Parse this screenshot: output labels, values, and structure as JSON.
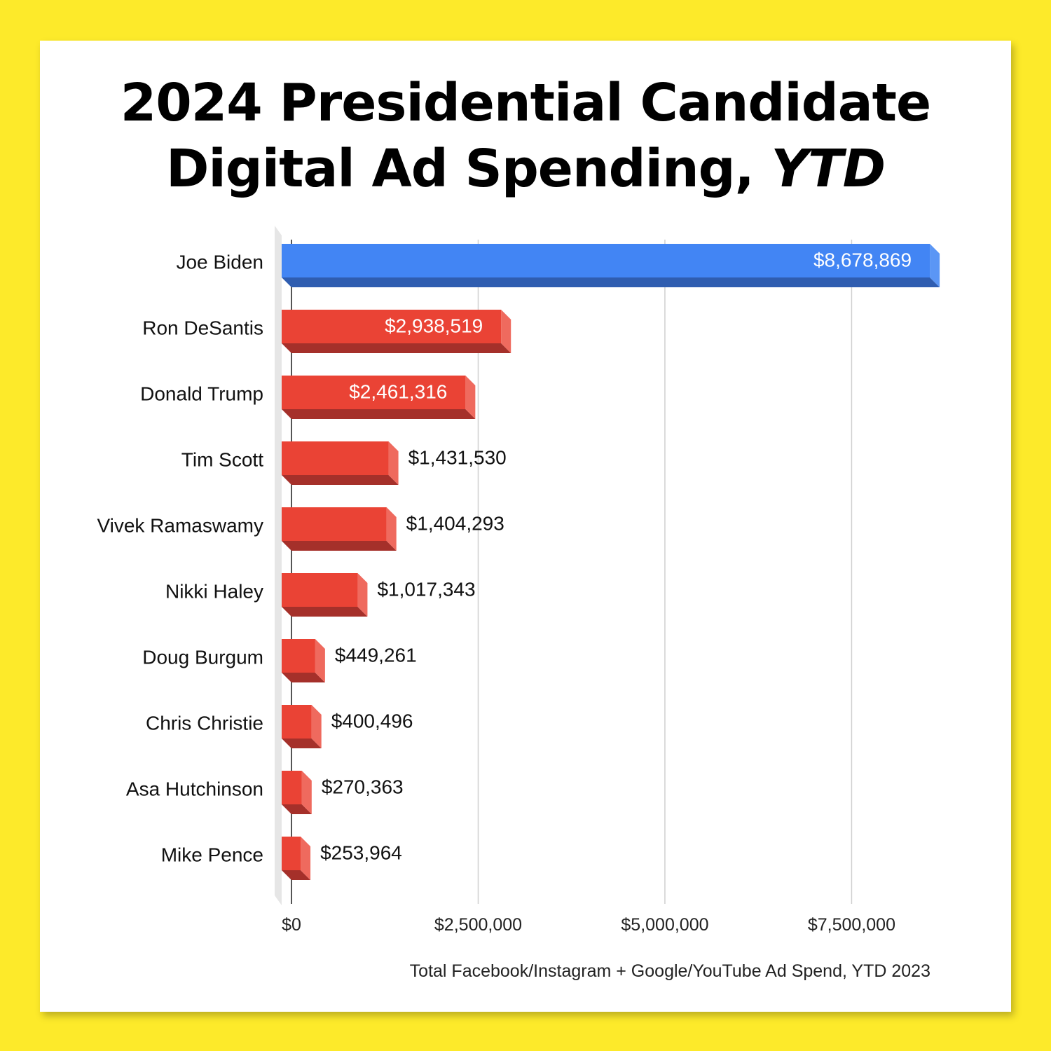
{
  "title": {
    "line1": "2024 Presidential Candidate",
    "line2_main": "Digital Ad Spending, ",
    "line2_emph": "YTD"
  },
  "caption": "Total Facebook/Instagram + Google/YouTube Ad Spend, YTD 2023",
  "colors": {
    "background": "#fdea2a",
    "democrat": "#4285f4",
    "republican": "#ea4335"
  },
  "chart_data": {
    "type": "bar",
    "orientation": "horizontal",
    "style": "3d",
    "title": "2024 Presidential Candidate Digital Ad Spending, YTD",
    "xlabel": "",
    "ylabel": "",
    "xlim": [
      0,
      8800000
    ],
    "grid": true,
    "legend": "none",
    "x_ticks": [
      0,
      2500000,
      5000000,
      7500000
    ],
    "x_tick_labels": [
      "$0",
      "$2,500,000",
      "$5,000,000",
      "$7,500,000"
    ],
    "categories": [
      "Joe Biden",
      "Ron DeSantis",
      "Donald Trump",
      "Tim Scott",
      "Vivek Ramaswamy",
      "Nikki Haley",
      "Doug Burgum",
      "Chris Christie",
      "Asa Hutchinson",
      "Mike Pence"
    ],
    "values": [
      8678869,
      2938519,
      2461316,
      1431530,
      1404293,
      1017343,
      449261,
      400496,
      270363,
      253964
    ],
    "value_labels": [
      "$8,678,869",
      "$2,938,519",
      "$2,461,316",
      "$1,431,530",
      "$1,404,293",
      "$1,017,343",
      "$449,261",
      "$400,496",
      "$270,363",
      "$253,964"
    ],
    "bar_colors": [
      "democrat",
      "republican",
      "republican",
      "republican",
      "republican",
      "republican",
      "republican",
      "republican",
      "republican",
      "republican"
    ]
  }
}
